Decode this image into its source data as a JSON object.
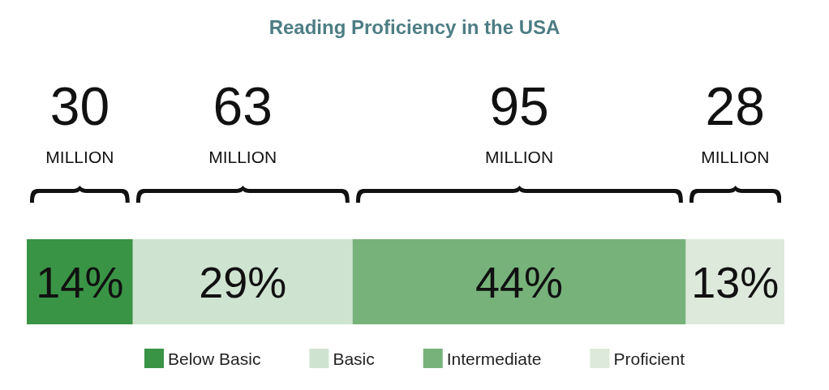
{
  "chart_data": {
    "type": "bar",
    "orientation": "horizontal",
    "stacked": true,
    "title": "Reading Proficiency in the USA",
    "categories": [
      null
    ],
    "xlim": [
      0,
      100
    ],
    "legend": "bottom",
    "series": [
      {
        "name": "Below Basic",
        "color": "#3a9446",
        "values": [
          14
        ],
        "value_labels": [
          "14%"
        ]
      },
      {
        "name": "Basic",
        "color": "#cfe4d0",
        "values": [
          29
        ],
        "value_labels": [
          "29%"
        ]
      },
      {
        "name": "Intermediate",
        "color": "#77b27b",
        "values": [
          44
        ],
        "value_labels": [
          "44%"
        ]
      },
      {
        "name": "Proficient",
        "color": "#dde9da",
        "values": [
          13
        ],
        "value_labels": [
          "13%"
        ]
      }
    ],
    "annotations": [
      "30\nMILLION",
      "63\nMILLION",
      "95\nMILLION",
      "28\nMILLION"
    ]
  }
}
